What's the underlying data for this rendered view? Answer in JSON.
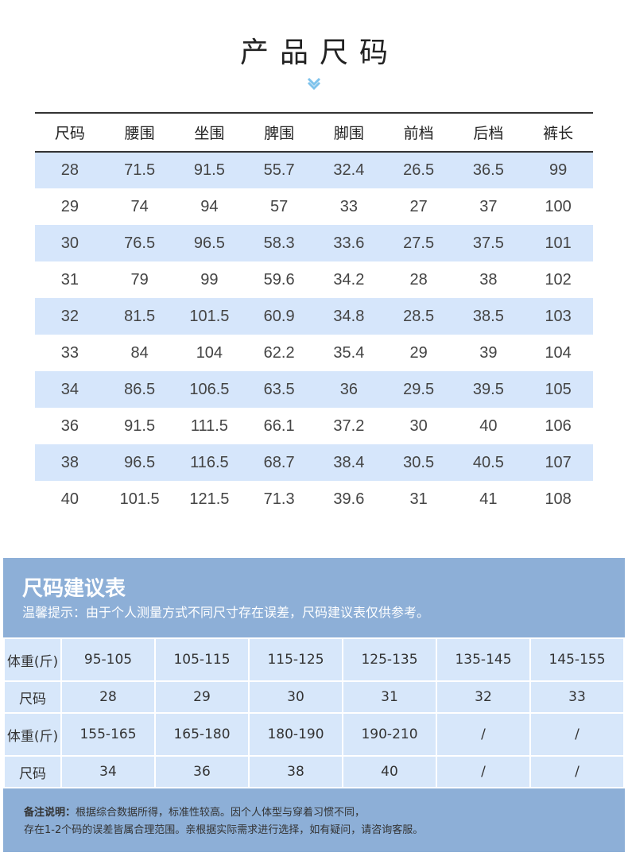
{
  "header": {
    "title": "产品尺码"
  },
  "size_table": {
    "columns": [
      "尺码",
      "腰围",
      "坐围",
      "脾围",
      "脚围",
      "前档",
      "后档",
      "裤长"
    ],
    "rows": [
      [
        "28",
        "71.5",
        "91.5",
        "55.7",
        "32.4",
        "26.5",
        "36.5",
        "99"
      ],
      [
        "29",
        "74",
        "94",
        "57",
        "33",
        "27",
        "37",
        "100"
      ],
      [
        "30",
        "76.5",
        "96.5",
        "58.3",
        "33.6",
        "27.5",
        "37.5",
        "101"
      ],
      [
        "31",
        "79",
        "99",
        "59.6",
        "34.2",
        "28",
        "38",
        "102"
      ],
      [
        "32",
        "81.5",
        "101.5",
        "60.9",
        "34.8",
        "28.5",
        "38.5",
        "103"
      ],
      [
        "33",
        "84",
        "104",
        "62.2",
        "35.4",
        "29",
        "39",
        "104"
      ],
      [
        "34",
        "86.5",
        "106.5",
        "63.5",
        "36",
        "29.5",
        "39.5",
        "105"
      ],
      [
        "36",
        "91.5",
        "111.5",
        "66.1",
        "37.2",
        "30",
        "40",
        "106"
      ],
      [
        "38",
        "96.5",
        "116.5",
        "68.7",
        "38.4",
        "30.5",
        "40.5",
        "107"
      ],
      [
        "40",
        "101.5",
        "121.5",
        "71.3",
        "39.6",
        "31",
        "41",
        "108"
      ]
    ]
  },
  "recommendation": {
    "title": "尺码建议表",
    "tip": "温馨提示：由于个人测量方式不同尺寸存在误差，尺码建议表仅供参考。",
    "rows": [
      {
        "label": "体重(斤)",
        "values": [
          "95-105",
          "105-115",
          "115-125",
          "125-135",
          "135-145",
          "145-155"
        ]
      },
      {
        "label": "尺码",
        "values": [
          "28",
          "29",
          "30",
          "31",
          "32",
          "33"
        ]
      },
      {
        "label": "体重(斤)",
        "values": [
          "155-165",
          "165-180",
          "180-190",
          "190-210",
          "/",
          "/"
        ]
      },
      {
        "label": "尺码",
        "values": [
          "34",
          "36",
          "38",
          "40",
          "/",
          "/"
        ]
      }
    ],
    "note_label": "备注说明：",
    "note_line1": "根据综合数据所得，标准性较高。因个人体型与穿着习惯不同，",
    "note_line2": "存在1-2个码的误差皆属合理范围。亲根据实际需求进行选择，如有疑问，请咨询客服。"
  },
  "colors": {
    "accent": "#8dafd7",
    "row_shade": "#d6e6fb",
    "chevron": "#7fc3ec"
  },
  "icons": {
    "chevron": "chevron-down-icon"
  }
}
